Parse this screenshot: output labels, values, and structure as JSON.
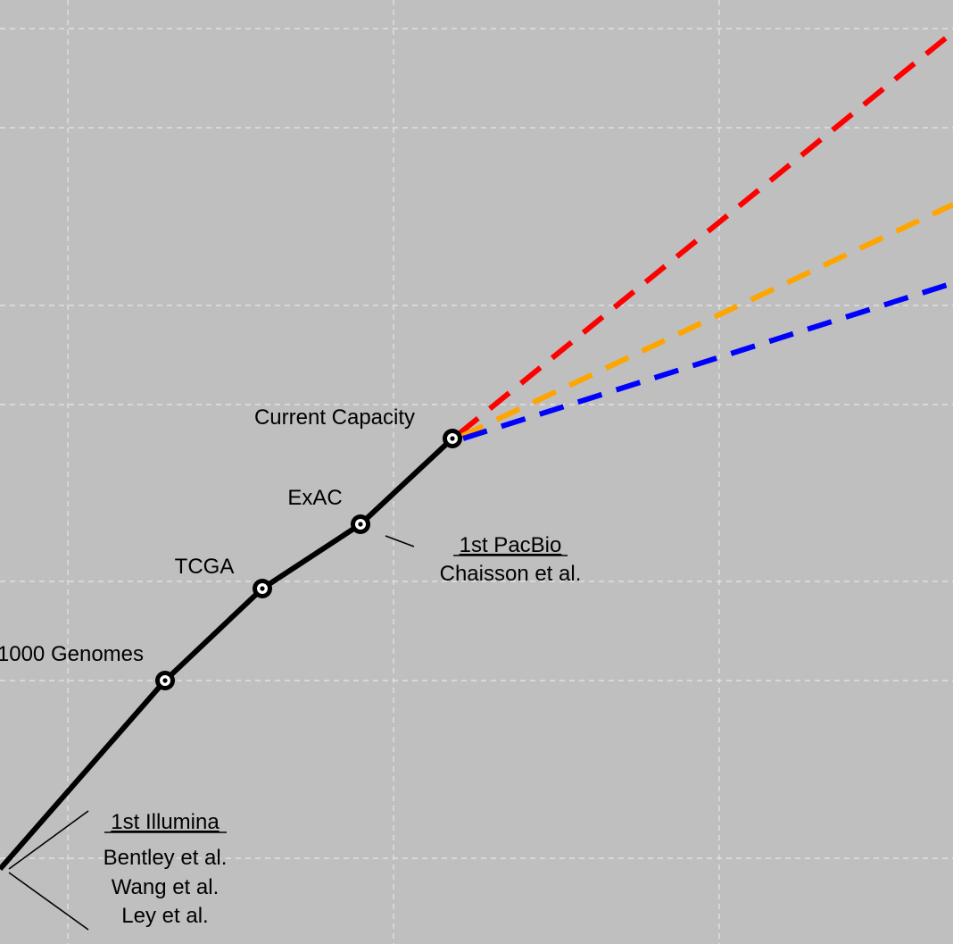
{
  "chart_data": {
    "type": "line",
    "title": "",
    "xlabel": "",
    "ylabel": "",
    "grid": true,
    "background": "#bfbfbf",
    "gridColor": "#e6e6e6",
    "series": [
      {
        "style": "solid",
        "color": "#000000",
        "points": [
          {
            "label": "",
            "marker": false
          },
          {
            "label": "1000 Genomes",
            "marker": true
          },
          {
            "label": "TCGA",
            "marker": true
          },
          {
            "label": "ExAC",
            "marker": true
          },
          {
            "label": "Current Capacity",
            "marker": true
          }
        ]
      },
      {
        "style": "dashed",
        "color": "#ff0000"
      },
      {
        "style": "dashed",
        "color": "#ffa500"
      },
      {
        "style": "dashed",
        "color": "#0000ff"
      }
    ],
    "annotations": [
      {
        "heading": "1st Illumina",
        "lines": [
          "Bentley et al.",
          "Wang et al.",
          "Ley et al."
        ]
      },
      {
        "heading": "1st PacBio",
        "lines": [
          "Chaisson et al."
        ]
      }
    ]
  }
}
